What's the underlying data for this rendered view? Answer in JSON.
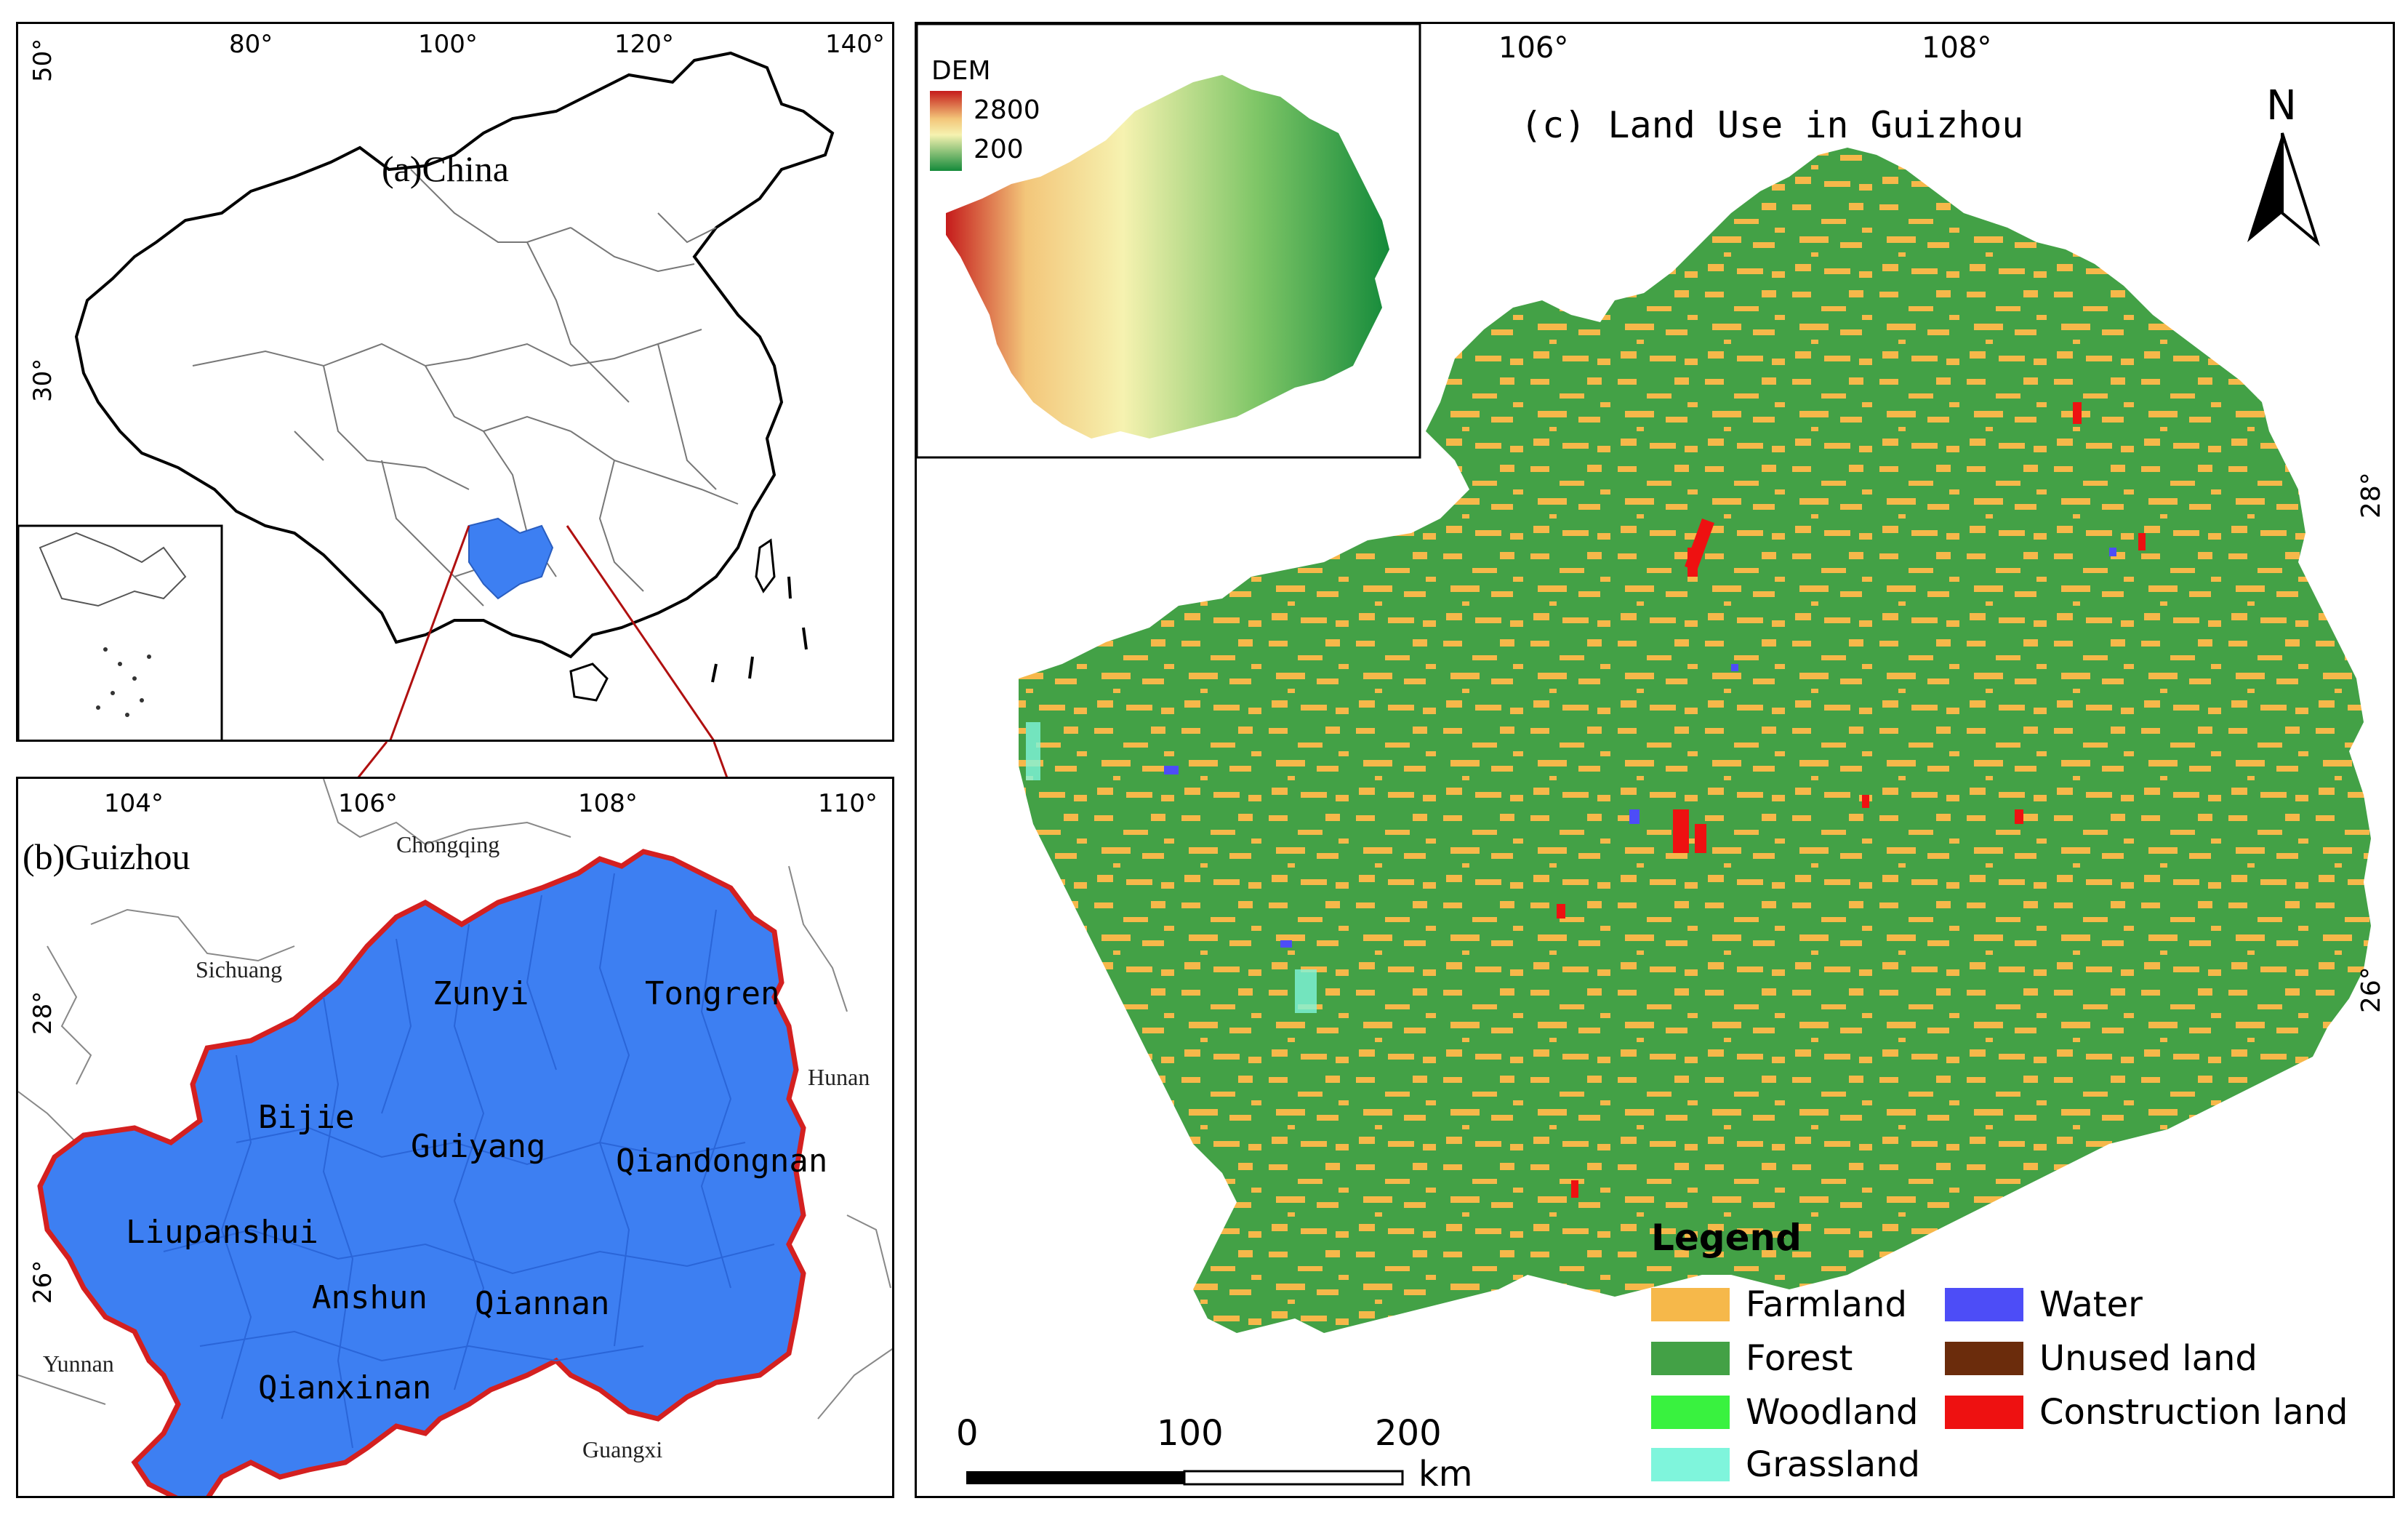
{
  "panel_a": {
    "title": "(a)China",
    "lon_ticks": [
      "80°",
      "100°",
      "120°",
      "140°"
    ],
    "lat_ticks": [
      "50°",
      "30°"
    ]
  },
  "panel_b": {
    "title": "(b)Guizhou",
    "lon_ticks": [
      "104°",
      "106°",
      "108°",
      "110°"
    ],
    "lat_ticks": [
      "28°",
      "26°"
    ],
    "prefectures": [
      "Zunyi",
      "Tongren",
      "Bijie",
      "Guiyang",
      "Qiandongnan",
      "Liupanshui",
      "Anshun",
      "Qiannan",
      "Qianxinan"
    ],
    "neighbors": [
      "Chongqing",
      "Sichuang",
      "Hunan",
      "Yunnan",
      "Guangxi"
    ],
    "colors": {
      "province_fill": "#3d7ff2",
      "province_border": "#d42020"
    }
  },
  "panel_c": {
    "title": "(c) Land Use in Guizhou",
    "lon_ticks": [
      "106°",
      "108°"
    ],
    "lat_ticks": [
      "28°",
      "26°"
    ],
    "north_label": "N",
    "dem": {
      "label": "DEM",
      "max": "2800",
      "min": "200"
    },
    "scale_bar": {
      "labels": [
        "0",
        "100",
        "200"
      ],
      "unit": "km"
    },
    "legend": {
      "title": "Legend",
      "items": [
        {
          "label": "Farmland",
          "color": "#f6b84a"
        },
        {
          "label": "Forest",
          "color": "#43a146"
        },
        {
          "label": "Woodland",
          "color": "#39f23f"
        },
        {
          "label": "Grassland",
          "color": "#7ff5dc"
        },
        {
          "label": "Water",
          "color": "#4d4df7"
        },
        {
          "label": "Unused land",
          "color": "#6b2c0c"
        },
        {
          "label": "Construction land",
          "color": "#ee1111"
        }
      ]
    }
  }
}
